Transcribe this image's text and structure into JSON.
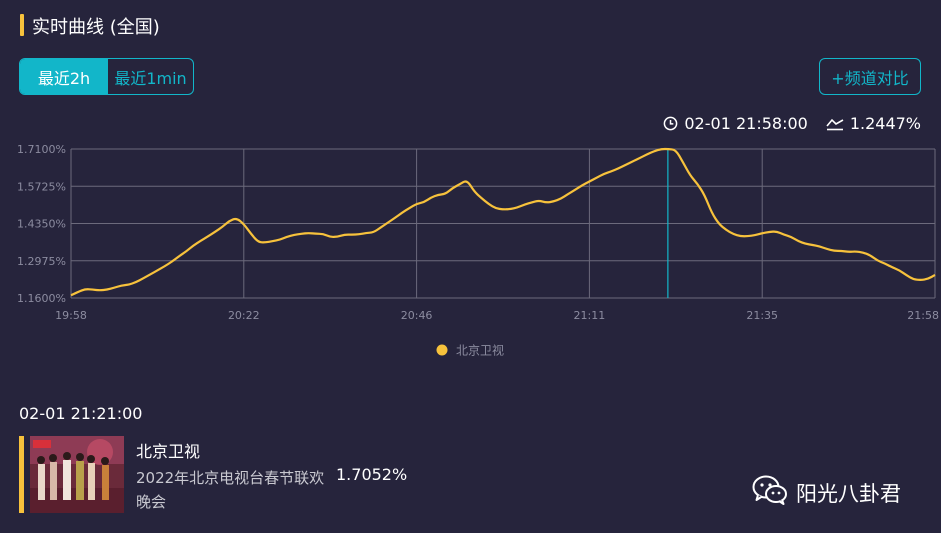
{
  "header": {
    "title": "实时曲线 (全国)"
  },
  "range_tabs": [
    {
      "label": "最近2h",
      "active": true
    },
    {
      "label": "最近1min",
      "active": false
    }
  ],
  "compare_button": {
    "label": "+频道对比"
  },
  "cursor_info": {
    "time": "02-01 21:58:00",
    "value": "1.2447%"
  },
  "chart_data": {
    "type": "line",
    "x_ticks": [
      "19:58",
      "20:22",
      "20:46",
      "21:11",
      "21:35",
      "21:58"
    ],
    "y_ticks": [
      "1.7100%",
      "1.5725%",
      "1.4350%",
      "1.2975%",
      "1.1600%"
    ],
    "ylim": [
      1.16,
      1.71
    ],
    "x_range_minutes": [
      0,
      120
    ],
    "grid": true,
    "legend_position": "bottom",
    "highlight_x_minutes": 82.9,
    "series": [
      {
        "name": "北京卫视",
        "color": "#f7c23c",
        "x": [
          0,
          1,
          2,
          3,
          4,
          5,
          6,
          7,
          8,
          9,
          10,
          11,
          12,
          13,
          14,
          15,
          16,
          17,
          18,
          19,
          20,
          21,
          22,
          23,
          24,
          25,
          26,
          27,
          28,
          29,
          30,
          31,
          32,
          33,
          34,
          35,
          36,
          37,
          38,
          39,
          40,
          41,
          42,
          43,
          44,
          45,
          46,
          47,
          48,
          49,
          50,
          51,
          52,
          53,
          54,
          55,
          56,
          57,
          58,
          59,
          60,
          61,
          62,
          63,
          64,
          65,
          66,
          67,
          68,
          69,
          70,
          71,
          72,
          73,
          74,
          75,
          76,
          77,
          78,
          79,
          80,
          81,
          82,
          83,
          84,
          85,
          86,
          87,
          88,
          89,
          90,
          91,
          92,
          93,
          94,
          95,
          96,
          97,
          98,
          99,
          100,
          101,
          102,
          103,
          104,
          105,
          106,
          107,
          108,
          109,
          110,
          111,
          112,
          113,
          114,
          115,
          116,
          117,
          118,
          119,
          120
        ],
        "values": [
          1.17,
          1.183,
          1.193,
          1.191,
          1.188,
          1.191,
          1.198,
          1.206,
          1.209,
          1.218,
          1.232,
          1.247,
          1.262,
          1.277,
          1.294,
          1.314,
          1.332,
          1.354,
          1.371,
          1.387,
          1.404,
          1.422,
          1.445,
          1.455,
          1.433,
          1.397,
          1.366,
          1.365,
          1.37,
          1.375,
          1.386,
          1.393,
          1.397,
          1.4,
          1.397,
          1.397,
          1.385,
          1.386,
          1.394,
          1.394,
          1.395,
          1.4,
          1.402,
          1.42,
          1.438,
          1.456,
          1.475,
          1.492,
          1.508,
          1.513,
          1.531,
          1.541,
          1.544,
          1.566,
          1.58,
          1.596,
          1.553,
          1.529,
          1.507,
          1.491,
          1.487,
          1.488,
          1.494,
          1.505,
          1.513,
          1.52,
          1.512,
          1.516,
          1.526,
          1.543,
          1.559,
          1.576,
          1.59,
          1.604,
          1.618,
          1.627,
          1.638,
          1.651,
          1.664,
          1.677,
          1.69,
          1.702,
          1.71,
          1.71,
          1.707,
          1.661,
          1.612,
          1.582,
          1.54,
          1.474,
          1.433,
          1.411,
          1.396,
          1.388,
          1.388,
          1.392,
          1.399,
          1.404,
          1.406,
          1.394,
          1.386,
          1.37,
          1.36,
          1.356,
          1.35,
          1.341,
          1.334,
          1.334,
          1.33,
          1.332,
          1.328,
          1.318,
          1.298,
          1.288,
          1.274,
          1.263,
          1.245,
          1.229,
          1.226,
          1.23,
          1.245
        ]
      }
    ]
  },
  "detail": {
    "time": "02-01 21:21:00",
    "channel": "北京卫视",
    "program": "2022年北京电视台春节联欢晚会",
    "rating": "1.7052%"
  },
  "watermark": {
    "text": "阳光八卦君",
    "icon": "wechat-icon"
  }
}
